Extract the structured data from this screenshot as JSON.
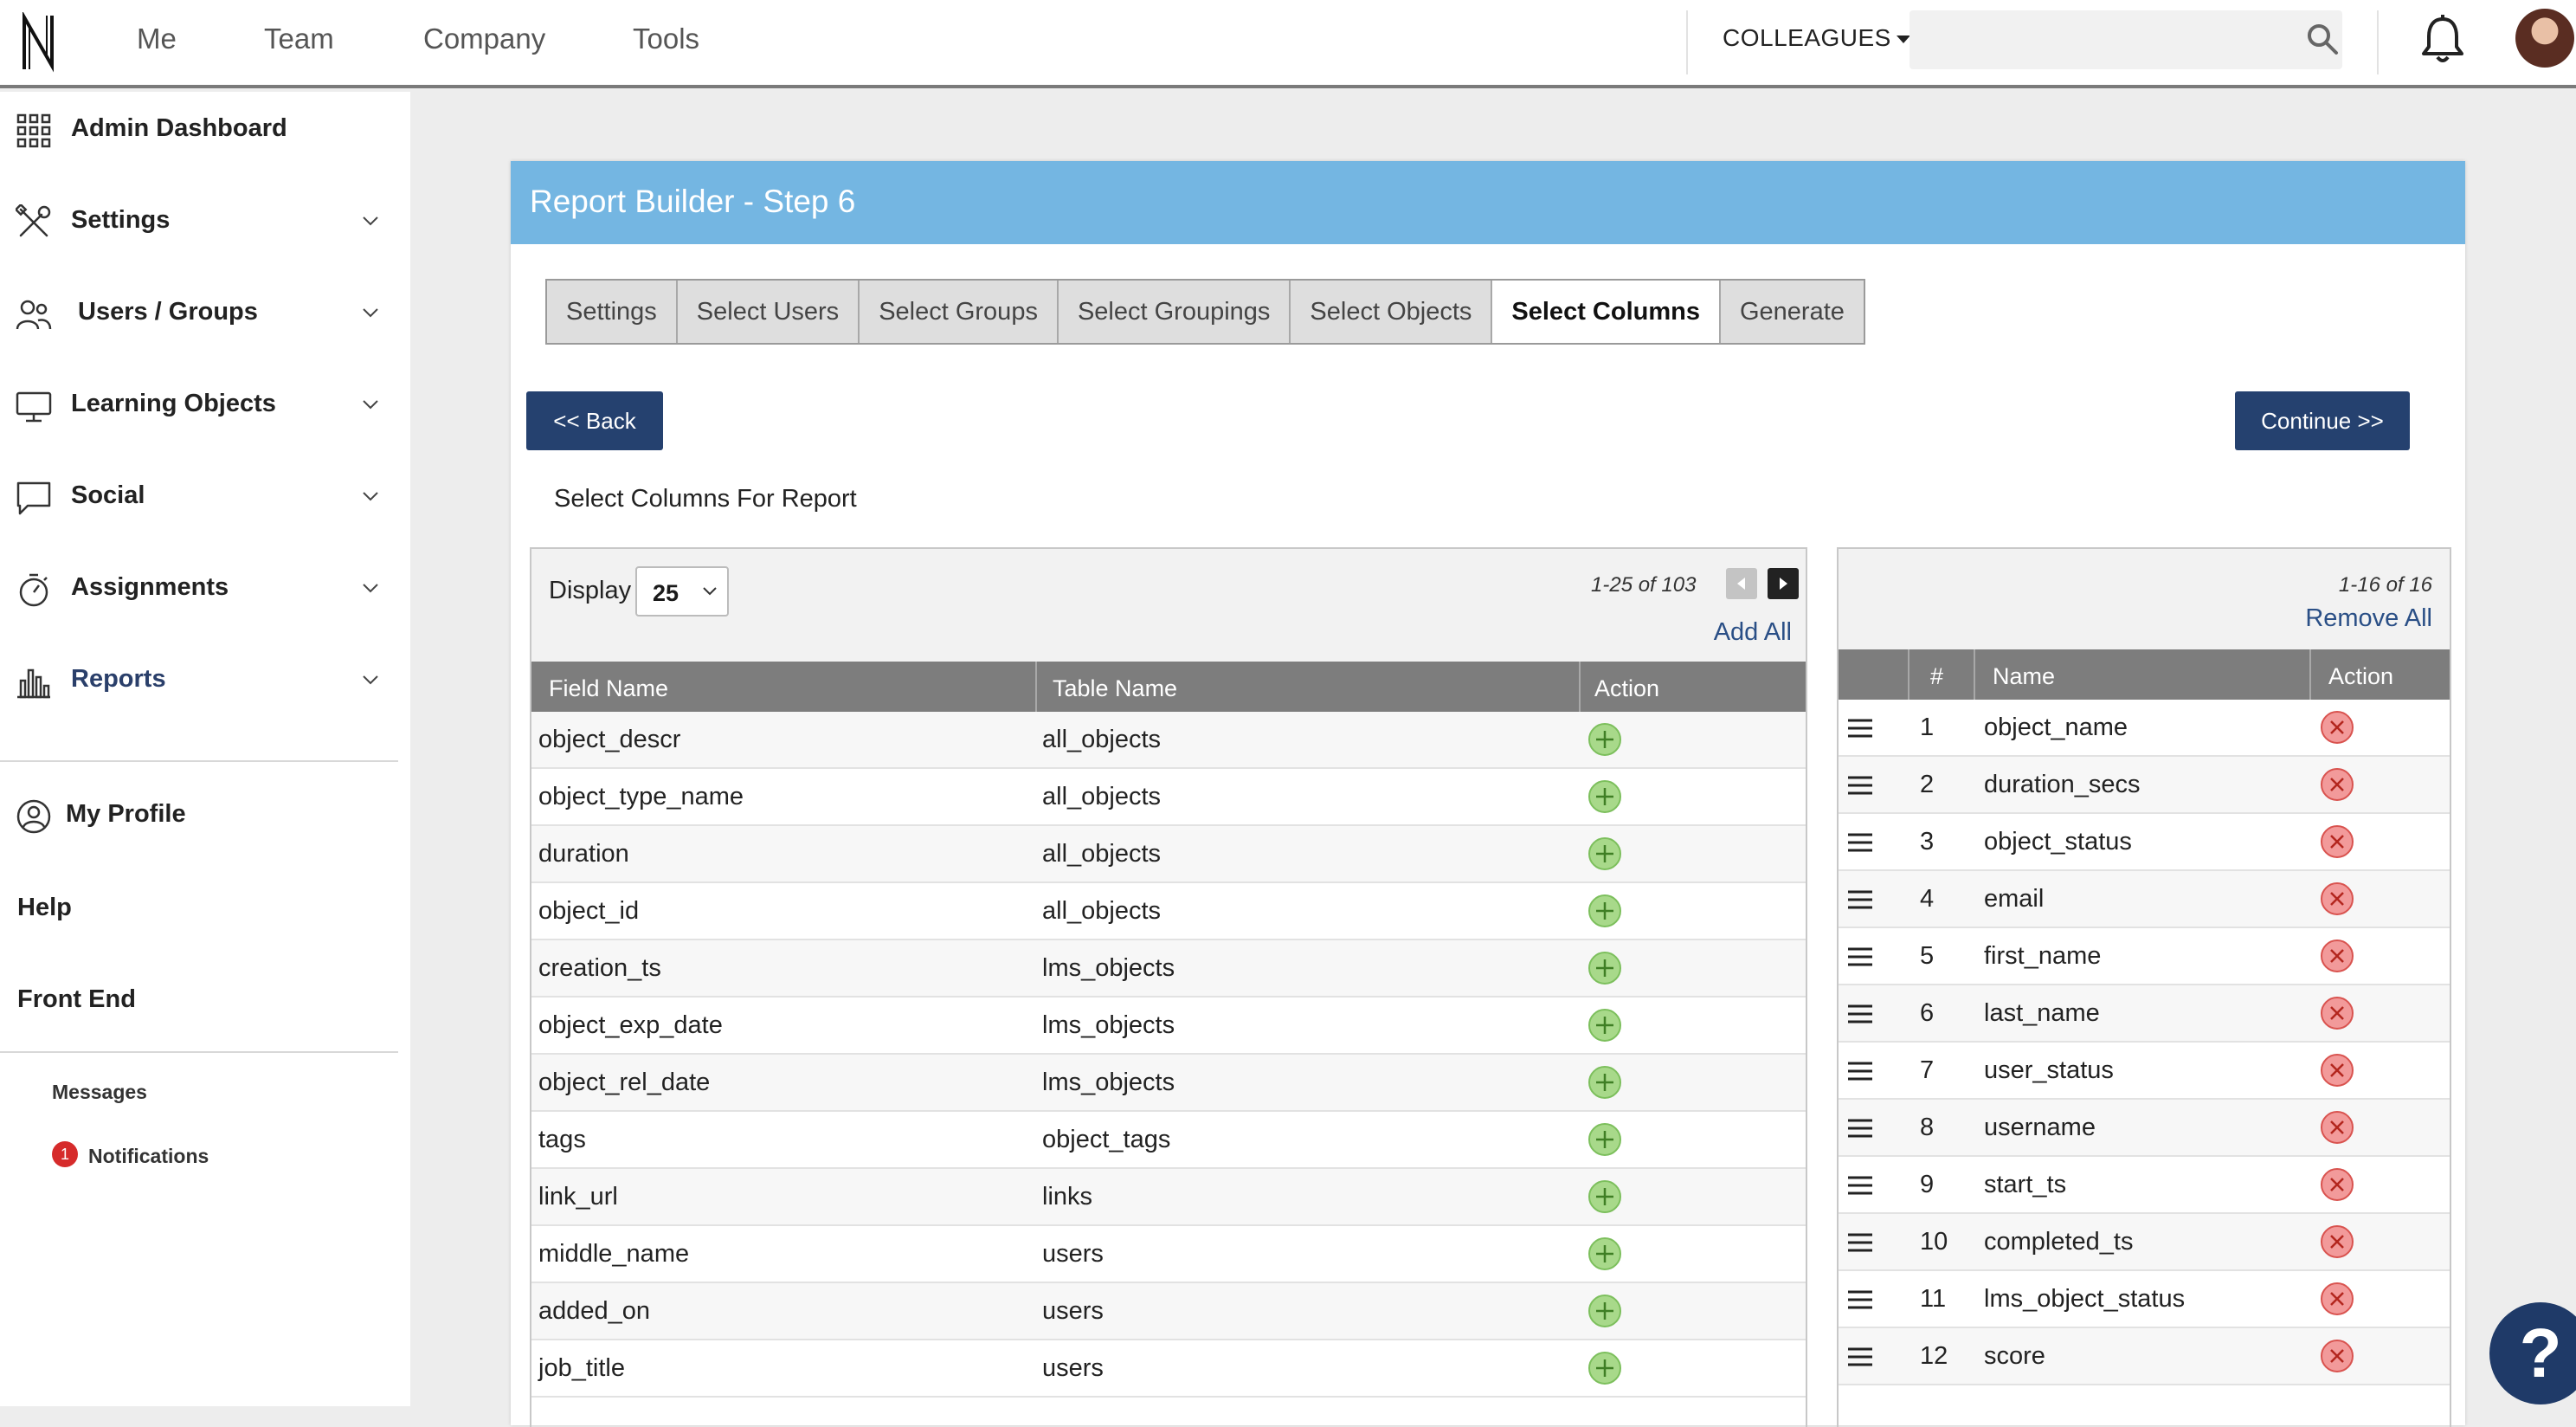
{
  "topnav": {
    "links": [
      "Me",
      "Team",
      "Company",
      "Tools"
    ],
    "colleagues_label": "COLLEAGUES",
    "search_placeholder": ""
  },
  "sidebar": {
    "items": [
      {
        "label": "Admin Dashboard",
        "icon": "grid-icon"
      },
      {
        "label": "Settings",
        "icon": "tools-icon"
      },
      {
        "label": "Users / Groups",
        "icon": "users-icon"
      },
      {
        "label": "Learning Objects",
        "icon": "monitor-icon"
      },
      {
        "label": "Social",
        "icon": "chat-icon"
      },
      {
        "label": "Assignments",
        "icon": "stopwatch-icon"
      },
      {
        "label": "Reports",
        "icon": "bar-chart-icon"
      }
    ],
    "my_profile": "My Profile",
    "help": "Help",
    "front_end": "Front End",
    "messages": "Messages",
    "notifications": "Notifications",
    "notifications_count": "1"
  },
  "card": {
    "title": "Report Builder - Step 6",
    "tabs": [
      "Settings",
      "Select Users",
      "Select Groups",
      "Select Groupings",
      "Select Objects",
      "Select Columns",
      "Generate"
    ],
    "active_tab": "Select Columns",
    "back_label": "<< Back",
    "continue_label": "Continue >>",
    "section_title": "Select Columns For Report"
  },
  "available": {
    "display_label": "Display",
    "display_value": "25",
    "range_text": "1-25 of 103",
    "add_all": "Add All",
    "headers": [
      "Field Name",
      "Table Name",
      "Action"
    ],
    "rows": [
      [
        "object_descr",
        "all_objects"
      ],
      [
        "object_type_name",
        "all_objects"
      ],
      [
        "duration",
        "all_objects"
      ],
      [
        "object_id",
        "all_objects"
      ],
      [
        "creation_ts",
        "lms_objects"
      ],
      [
        "object_exp_date",
        "lms_objects"
      ],
      [
        "object_rel_date",
        "lms_objects"
      ],
      [
        "tags",
        "object_tags"
      ],
      [
        "link_url",
        "links"
      ],
      [
        "middle_name",
        "users"
      ],
      [
        "added_on",
        "users"
      ],
      [
        "job_title",
        "users"
      ]
    ]
  },
  "selected": {
    "range_text": "1-16 of 16",
    "remove_all": "Remove All",
    "headers": [
      "#",
      "Name",
      "Action"
    ],
    "rows": [
      [
        "1",
        "object_name"
      ],
      [
        "2",
        "duration_secs"
      ],
      [
        "3",
        "object_status"
      ],
      [
        "4",
        "email"
      ],
      [
        "5",
        "first_name"
      ],
      [
        "6",
        "last_name"
      ],
      [
        "7",
        "user_status"
      ],
      [
        "8",
        "username"
      ],
      [
        "9",
        "start_ts"
      ],
      [
        "10",
        "completed_ts"
      ],
      [
        "11",
        "lms_object_status"
      ],
      [
        "12",
        "score"
      ]
    ]
  },
  "help_button": "?",
  "colors": {
    "header_blue": "#74b6e2",
    "button_navy": "#25416f",
    "plus_green": "#9fd27a",
    "remove_red": "#f08080"
  }
}
